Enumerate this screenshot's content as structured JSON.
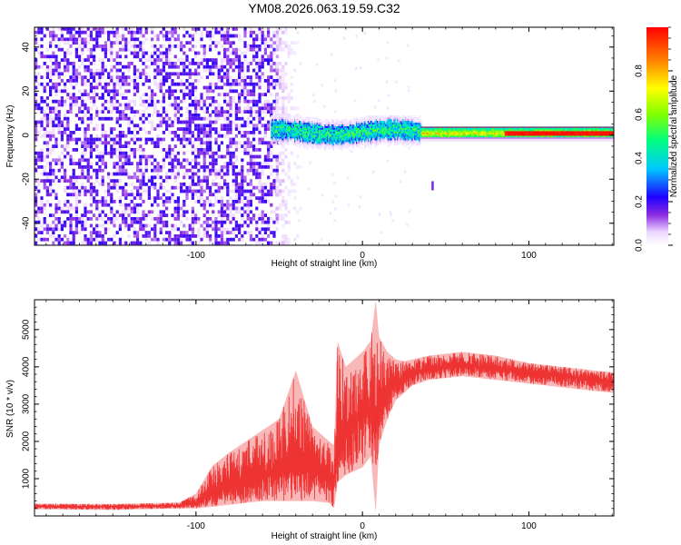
{
  "title": "YM08.2026.063.19.59.C32",
  "chart_data": [
    {
      "type": "heatmap",
      "title": "YM08.2026.063.19.59.C32",
      "xlabel": "Height of straight line (km)",
      "ylabel": "Frequency (Hz)",
      "xlim": [
        -197,
        151
      ],
      "ylim": [
        -50,
        49
      ],
      "xticks": [
        -100,
        0,
        100
      ],
      "yticks": [
        -40,
        -20,
        0,
        20,
        40
      ],
      "xtick_labels": [
        "-100",
        "0",
        "100"
      ],
      "ytick_labels": [
        "-40",
        "-20",
        "0",
        "20",
        "40"
      ],
      "colorbar": {
        "label": "Normalized spectral amplitude",
        "range": [
          0.0,
          1.0
        ],
        "ticks": [
          0.0,
          0.2,
          0.4,
          0.6,
          0.8
        ],
        "tick_labels": [
          "0.0",
          "0.2",
          "0.4",
          "0.6",
          "0.8"
        ],
        "colors": [
          "#ffffff",
          "#e6ccff",
          "#8000ff",
          "#0000ff",
          "#00c0ff",
          "#00ff80",
          "#80ff00",
          "#ffff00",
          "#ff8000",
          "#ff0000"
        ]
      },
      "regions": [
        {
          "name": "noise",
          "x_range": [
            -197,
            -52
          ],
          "y_range": [
            -50,
            49
          ],
          "amplitude": 0.1
        },
        {
          "name": "noise-fade",
          "x_range": [
            -52,
            -38
          ],
          "y_range": [
            -50,
            49
          ],
          "amplitude": 0.03
        },
        {
          "name": "carrier-onset",
          "x_range": [
            -55,
            35
          ],
          "center_hz": 1.5,
          "half_width_hz": 4,
          "amplitude": 0.55
        },
        {
          "name": "carrier-steady",
          "x_range": [
            35,
            151
          ],
          "center_hz": 1.0,
          "half_width_hz": 2,
          "amplitude": 0.75
        },
        {
          "name": "spike",
          "x_center": 42,
          "y_center": -23,
          "amplitude": 0.15
        }
      ]
    },
    {
      "type": "line",
      "xlabel": "Height of straight line (km)",
      "ylabel": "SNR (10 * v/v)",
      "xlim": [
        -197,
        151
      ],
      "ylim": [
        0,
        5800
      ],
      "xticks": [
        -100,
        0,
        100
      ],
      "yticks": [
        1000,
        2000,
        3000,
        4000,
        5000
      ],
      "xtick_labels": [
        "-100",
        "0",
        "100"
      ],
      "ytick_labels": [
        "1000",
        "2000",
        "3000",
        "4000",
        "5000"
      ],
      "series": [
        {
          "name": "SNR",
          "color": "#ee3333",
          "x": [
            -197,
            -150,
            -110,
            -100,
            -90,
            -80,
            -70,
            -60,
            -50,
            -40,
            -30,
            -20,
            -17,
            -15,
            -10,
            0,
            5,
            8,
            10,
            15,
            20,
            25,
            30,
            40,
            50,
            60,
            70,
            80,
            90,
            100,
            110,
            120,
            130,
            140,
            151
          ],
          "y": [
            250,
            250,
            280,
            350,
            600,
            800,
            950,
            1100,
            1200,
            1300,
            1200,
            1000,
            1050,
            1600,
            2200,
            2700,
            2900,
            2600,
            3000,
            3300,
            3500,
            3650,
            3800,
            3950,
            4000,
            4050,
            4000,
            3950,
            3900,
            3850,
            3800,
            3750,
            3700,
            3650,
            3600
          ],
          "envelope_top": [
            330,
            320,
            360,
            600,
            1350,
            1700,
            2000,
            2300,
            2600,
            3900,
            2400,
            2000,
            1900,
            4700,
            4000,
            4400,
            4700,
            5800,
            4800,
            4400,
            4200,
            4150,
            4200,
            4300,
            4350,
            4400,
            4350,
            4300,
            4200,
            4100,
            4050,
            4000,
            3950,
            3900,
            3850
          ],
          "envelope_bottom": [
            180,
            160,
            200,
            200,
            250,
            300,
            350,
            400,
            400,
            400,
            400,
            350,
            200,
            900,
            1100,
            1300,
            1600,
            50,
            1900,
            2600,
            3100,
            3300,
            3500,
            3650,
            3700,
            3750,
            3700,
            3650,
            3600,
            3550,
            3500,
            3450,
            3400,
            3350,
            3300
          ]
        }
      ]
    }
  ]
}
